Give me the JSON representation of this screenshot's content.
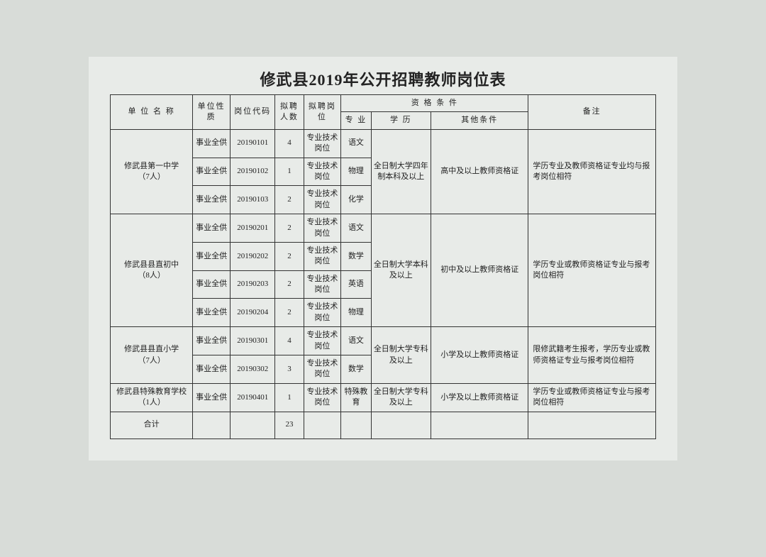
{
  "title": "修武县2019年公开招聘教师岗位表",
  "headers": {
    "unit": "单 位 名 称",
    "nature": "单位性质",
    "code": "岗位代码",
    "count": "拟聘人数",
    "position": "拟聘岗位",
    "qualification": "资  格  条  件",
    "major": "专  业",
    "education": "学  历",
    "other": "其他条件",
    "remark": "备注"
  },
  "groups": [
    {
      "unit": "修武县第一中学\n（7人）",
      "education": "全日制大学四年制本科及以上",
      "other": "高中及以上教师资格证",
      "remark": "学历专业及教师资格证专业均与报考岗位相符",
      "rows": [
        {
          "nature": "事业全供",
          "code": "20190101",
          "count": "4",
          "position": "专业技术岗位",
          "major": "语文"
        },
        {
          "nature": "事业全供",
          "code": "20190102",
          "count": "1",
          "position": "专业技术岗位",
          "major": "物理"
        },
        {
          "nature": "事业全供",
          "code": "20190103",
          "count": "2",
          "position": "专业技术岗位",
          "major": "化学"
        }
      ]
    },
    {
      "unit": "修武县县直初中\n（8人）",
      "education": "全日制大学本科及以上",
      "other": "初中及以上教师资格证",
      "remark": "学历专业或教师资格证专业与报考岗位相符",
      "rows": [
        {
          "nature": "事业全供",
          "code": "20190201",
          "count": "2",
          "position": "专业技术岗位",
          "major": "语文"
        },
        {
          "nature": "事业全供",
          "code": "20190202",
          "count": "2",
          "position": "专业技术岗位",
          "major": "数学"
        },
        {
          "nature": "事业全供",
          "code": "20190203",
          "count": "2",
          "position": "专业技术岗位",
          "major": "英语"
        },
        {
          "nature": "事业全供",
          "code": "20190204",
          "count": "2",
          "position": "专业技术岗位",
          "major": "物理"
        }
      ]
    },
    {
      "unit": "修武县县直小学\n（7人）",
      "education": "全日制大学专科及以上",
      "other": "小学及以上教师资格证",
      "remark": "限修武籍考生报考，学历专业或教师资格证专业与报考岗位相符",
      "rows": [
        {
          "nature": "事业全供",
          "code": "20190301",
          "count": "4",
          "position": "专业技术岗位",
          "major": "语文"
        },
        {
          "nature": "事业全供",
          "code": "20190302",
          "count": "3",
          "position": "专业技术岗位",
          "major": "数学"
        }
      ]
    },
    {
      "unit": "修武县特殊教育学校\n（1人）",
      "education": "全日制大学专科及以上",
      "other": "小学及以上教师资格证",
      "remark": "学历专业或教师资格证专业与报考岗位相符",
      "rows": [
        {
          "nature": "事业全供",
          "code": "20190401",
          "count": "1",
          "position": "专业技术岗位",
          "major": "特殊教育"
        }
      ]
    }
  ],
  "total": {
    "label": "合计",
    "count": "23"
  },
  "style": {
    "background_color": "#e8ebe8",
    "border_color": "#333333",
    "text_color": "#222222",
    "title_fontsize": 22,
    "cell_fontsize": 11
  }
}
